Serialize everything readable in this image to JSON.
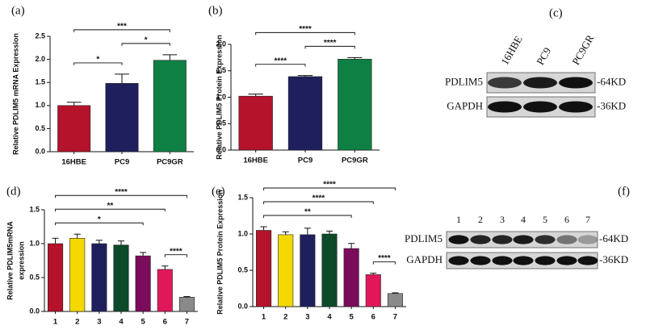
{
  "chart_data": [
    {
      "type": "bar",
      "label": "(a)",
      "ylabel": "Relative PDLIM5 mRNA Expression",
      "categories": [
        "16HBE",
        "PC9",
        "PC9GR"
      ],
      "values": [
        1.0,
        1.48,
        1.98
      ],
      "errors": [
        0.07,
        0.2,
        0.12
      ],
      "colors": [
        "#b5122b",
        "#1f1f5e",
        "#0e8043"
      ],
      "ylim": [
        0,
        2.5
      ],
      "yticks": [
        {
          "value": 0,
          "label": "0.0"
        },
        0.5,
        {
          "value": 1,
          "label": "1.0"
        },
        1.5,
        {
          "value": 2,
          "label": "2.0"
        },
        2.5
      ],
      "annotations": [
        {
          "text": "*",
          "from": "16HBE",
          "to": "PC9"
        },
        {
          "text": "*",
          "from": "PC9",
          "to": "PC9GR"
        },
        {
          "text": "***",
          "from": "16HBE",
          "to": "PC9GR"
        }
      ]
    },
    {
      "type": "bar",
      "label": "(b)",
      "ylabel": "Relative PDLIM5 Protein Expression",
      "categories": [
        "16HBE",
        "PC9",
        "PC9GR"
      ],
      "values": [
        1.02,
        1.39,
        1.72
      ],
      "errors": [
        0.04,
        0.02,
        0.03
      ],
      "colors": [
        "#b5122b",
        "#1f1f5e",
        "#0e8043"
      ],
      "ylim": [
        0,
        2
      ],
      "yticks": [
        {
          "value": 0,
          "label": "0.0"
        },
        0.5,
        {
          "value": 1,
          "label": "1.0"
        },
        1.5,
        {
          "value": 2,
          "label": "2.0"
        }
      ],
      "annotations": [
        {
          "text": "****",
          "from": "16HBE",
          "to": "PC9"
        },
        {
          "text": "****",
          "from": "PC9",
          "to": "PC9GR"
        },
        {
          "text": "****",
          "from": "16HBE",
          "to": "PC9GR"
        }
      ]
    },
    {
      "type": "bar",
      "label": "(d)",
      "ylabel": [
        "Relative PDLIM5mRNA",
        "expression"
      ],
      "categories": [
        "1",
        "2",
        "3",
        "4",
        "5",
        "6",
        "7"
      ],
      "values": [
        1.0,
        1.08,
        1.0,
        0.98,
        0.82,
        0.62,
        0.21
      ],
      "errors": [
        0.08,
        0.06,
        0.05,
        0.06,
        0.05,
        0.05,
        0.01
      ],
      "colors": [
        "#b5122b",
        "#f5d800",
        "#1f1f5e",
        "#0d4a2a",
        "#7b0b5b",
        "#e0185a",
        "#8a8a8a"
      ],
      "ylim": [
        0,
        1.5
      ],
      "yticks": [
        {
          "value": 0,
          "label": "0.0"
        },
        0.5,
        {
          "value": 1,
          "label": "1.0"
        },
        1.5
      ],
      "annotations": [
        {
          "text": "****",
          "from": "6",
          "to": "7"
        },
        {
          "text": "*",
          "from": "1",
          "to": "5"
        },
        {
          "text": "**",
          "from": "1",
          "to": "6"
        },
        {
          "text": "****",
          "from": "1",
          "to": "7"
        }
      ]
    },
    {
      "type": "bar",
      "label": "(e)",
      "ylabel": "Relative PDLIM5 Protein Expression",
      "categories": [
        "1",
        "2",
        "3",
        "4",
        "5",
        "6",
        "7"
      ],
      "values": [
        1.05,
        0.99,
        0.99,
        1.0,
        0.8,
        0.44,
        0.18
      ],
      "errors": [
        0.05,
        0.04,
        0.09,
        0.04,
        0.07,
        0.02,
        0.01
      ],
      "colors": [
        "#b5122b",
        "#f5d800",
        "#1f1f5e",
        "#0d4a2a",
        "#7b0b5b",
        "#e0185a",
        "#8a8a8a"
      ],
      "ylim": [
        0,
        1.5
      ],
      "yticks": [
        {
          "value": 0,
          "label": "0.0"
        },
        0.5,
        {
          "value": 1,
          "label": "1.0"
        },
        1.5
      ],
      "annotations": [
        {
          "text": "****",
          "from": "6",
          "to": "7"
        },
        {
          "text": "**",
          "from": "1",
          "to": "5"
        },
        {
          "text": "****",
          "from": "1",
          "to": "6"
        },
        {
          "text": "****",
          "from": "1",
          "to": "7"
        }
      ]
    }
  ],
  "blots": [
    {
      "label": "(c)",
      "lanes": [
        "16HBE",
        "PC9",
        "PC9GR"
      ],
      "rows": [
        {
          "name": "PDLIM5",
          "size": "-64KD"
        },
        {
          "name": "GAPDH",
          "size": "-36KD"
        }
      ]
    },
    {
      "label": "(f)",
      "lanes": [
        "1",
        "2",
        "3",
        "4",
        "5",
        "6",
        "7"
      ],
      "rows": [
        {
          "name": "PDLIM5",
          "size": "-64KD"
        },
        {
          "name": "GAPDH",
          "size": "-36KD"
        }
      ]
    }
  ]
}
